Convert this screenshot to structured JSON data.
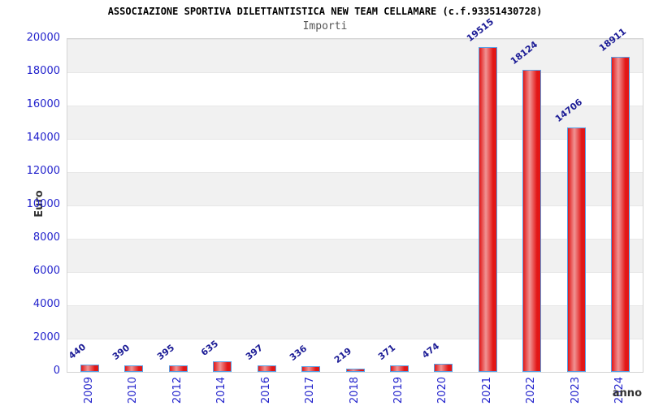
{
  "header": {
    "title": "ASSOCIAZIONE SPORTIVA DILETTANTISTICA NEW TEAM CELLAMARE (c.f.93351430728)",
    "subtitle": "Importi"
  },
  "axes": {
    "y_label": "Euro",
    "x_label": "anno"
  },
  "chart_data": {
    "type": "bar",
    "title": "ASSOCIAZIONE SPORTIVA DILETTANTISTICA NEW TEAM CELLAMARE (c.f.93351430728)",
    "subtitle": "Importi",
    "xlabel": "anno",
    "ylabel": "Euro",
    "categories": [
      "2009",
      "2010",
      "2012",
      "2014",
      "2016",
      "2017",
      "2018",
      "2019",
      "2020",
      "2021",
      "2022",
      "2023",
      "2024"
    ],
    "values": [
      440,
      390,
      395,
      635,
      397,
      336,
      219,
      371,
      474,
      19515,
      18124,
      14706,
      18911
    ],
    "ylim": [
      0,
      20000
    ],
    "yticks": [
      20000,
      18000,
      16000,
      14000,
      12000,
      10000,
      8000,
      6000,
      4000,
      2000,
      0
    ],
    "grid": "alternating-horizontal-bands",
    "legend": "none",
    "bar_labels_rotated": true,
    "colors": {
      "bar_fill_edge": "#e21717",
      "bar_fill_center": "#f09494",
      "bar_border": "#58a0e6",
      "tick_label": "#2222cc",
      "value_label": "#1c1c96",
      "band_gray": "#f1f1f1",
      "band_white": "#ffffff",
      "title": "#000000",
      "subtitle": "#555555",
      "axis_title": "#333333"
    }
  }
}
